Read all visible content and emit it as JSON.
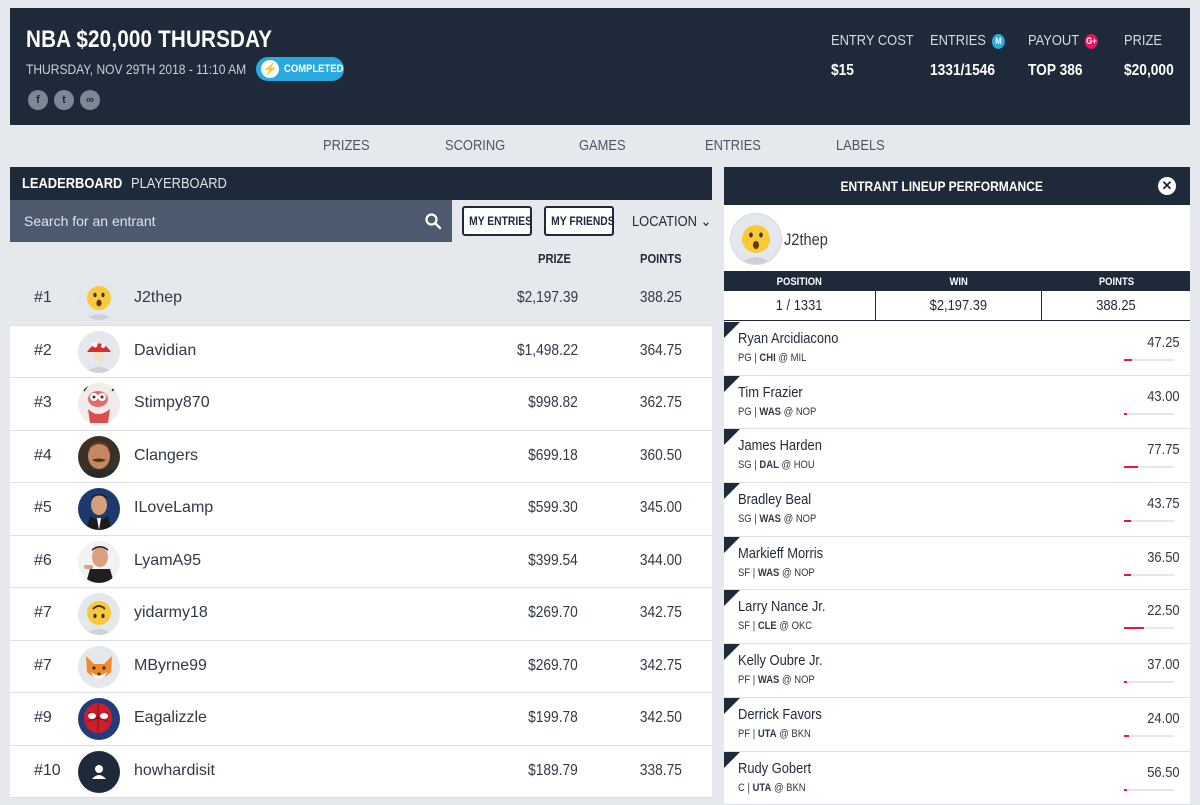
{
  "header": {
    "title": "NBA $20,000 THURSDAY",
    "date": "THURSDAY, NOV 29TH 2018 - 11:10 AM",
    "status": "COMPLETED",
    "social": [
      "facebook-icon",
      "twitter-icon",
      "link-icon"
    ],
    "stats": [
      {
        "label": "ENTRY COST",
        "value": "$15"
      },
      {
        "label": "ENTRIES",
        "badge": "M",
        "badge_color": "#2aa9e0",
        "value": "1331/1546"
      },
      {
        "label": "PAYOUT",
        "badge": "G+",
        "badge_color": "#e8175d",
        "value": "TOP 386"
      },
      {
        "label": "PRIZE",
        "value": "$20,000"
      }
    ]
  },
  "nav_tabs": [
    "PRIZES",
    "SCORING",
    "GAMES",
    "ENTRIES",
    "LABELS"
  ],
  "leaderboard": {
    "tabs": [
      "LEADERBOARD",
      "PLAYERBOARD"
    ],
    "search_placeholder": "Search for an entrant",
    "buttons": {
      "my_entries": "MY ENTRIES",
      "my_friends": "MY FRIENDS",
      "location": "LOCATION"
    },
    "columns": {
      "prize": "PRIZE",
      "points": "POINTS"
    },
    "rows": [
      {
        "rank": "#1",
        "name": "J2thep",
        "prize": "$2,197.39",
        "points": "388.25",
        "avatar": "surprised-emoji-icon"
      },
      {
        "rank": "#2",
        "name": "Davidian",
        "prize": "$1,498.22",
        "points": "364.75",
        "avatar": "mushroom-icon"
      },
      {
        "rank": "#3",
        "name": "Stimpy870",
        "prize": "$998.82",
        "points": "362.75",
        "avatar": "cartoon-cat-icon"
      },
      {
        "rank": "#4",
        "name": "Clangers",
        "prize": "$699.18",
        "points": "360.50",
        "avatar": "mustache-man-photo"
      },
      {
        "rank": "#5",
        "name": "ILoveLamp",
        "prize": "$599.30",
        "points": "345.00",
        "avatar": "suited-man-photo"
      },
      {
        "rank": "#6",
        "name": "LyamA95",
        "prize": "$399.54",
        "points": "344.00",
        "avatar": "pointing-man-photo"
      },
      {
        "rank": "#7",
        "name": "yidarmy18",
        "prize": "$269.70",
        "points": "342.75",
        "avatar": "upside-down-emoji-icon"
      },
      {
        "rank": "#7",
        "name": "MByrne99",
        "prize": "$269.70",
        "points": "342.75",
        "avatar": "fox-emoji-icon"
      },
      {
        "rank": "#9",
        "name": "Eagalizzle",
        "prize": "$199.78",
        "points": "342.50",
        "avatar": "spiderman-photo"
      },
      {
        "rank": "#10",
        "name": "howhardisit",
        "prize": "$189.79",
        "points": "338.75",
        "avatar": "default-user-icon"
      }
    ]
  },
  "lineup": {
    "title": "ENTRANT LINEUP PERFORMANCE",
    "user": "J2thep",
    "summary": [
      {
        "label": "POSITION",
        "value": "1 / 1331"
      },
      {
        "label": "WIN",
        "value": "$2,197.39"
      },
      {
        "label": "POINTS",
        "value": "388.25"
      }
    ],
    "players": [
      {
        "name": "Ryan Arcidiacono",
        "pos": "PG",
        "team": "CHI",
        "opp": "MIL",
        "points": "47.25",
        "bar": 0.15
      },
      {
        "name": "Tim Frazier",
        "pos": "PG",
        "team": "WAS",
        "opp": "NOP",
        "points": "43.00",
        "bar": 0.06
      },
      {
        "name": "James Harden",
        "pos": "SG",
        "team": "DAL",
        "opp": "HOU",
        "points": "77.75",
        "bar": 0.28
      },
      {
        "name": "Bradley Beal",
        "pos": "SG",
        "team": "WAS",
        "opp": "NOP",
        "points": "43.75",
        "bar": 0.14
      },
      {
        "name": "Markieff Morris",
        "pos": "SF",
        "team": "WAS",
        "opp": "NOP",
        "points": "36.50",
        "bar": 0.14
      },
      {
        "name": "Larry Nance Jr.",
        "pos": "SF",
        "team": "CLE",
        "opp": "OKC",
        "points": "22.50",
        "bar": 0.4
      },
      {
        "name": "Kelly Oubre Jr.",
        "pos": "PF",
        "team": "WAS",
        "opp": "NOP",
        "points": "37.00",
        "bar": 0.06
      },
      {
        "name": "Derrick Favors",
        "pos": "PF",
        "team": "UTA",
        "opp": "BKN",
        "points": "24.00",
        "bar": 0.1
      },
      {
        "name": "Rudy Gobert",
        "pos": "C",
        "team": "UTA",
        "opp": "BKN",
        "points": "56.50",
        "bar": 0.06
      }
    ]
  }
}
